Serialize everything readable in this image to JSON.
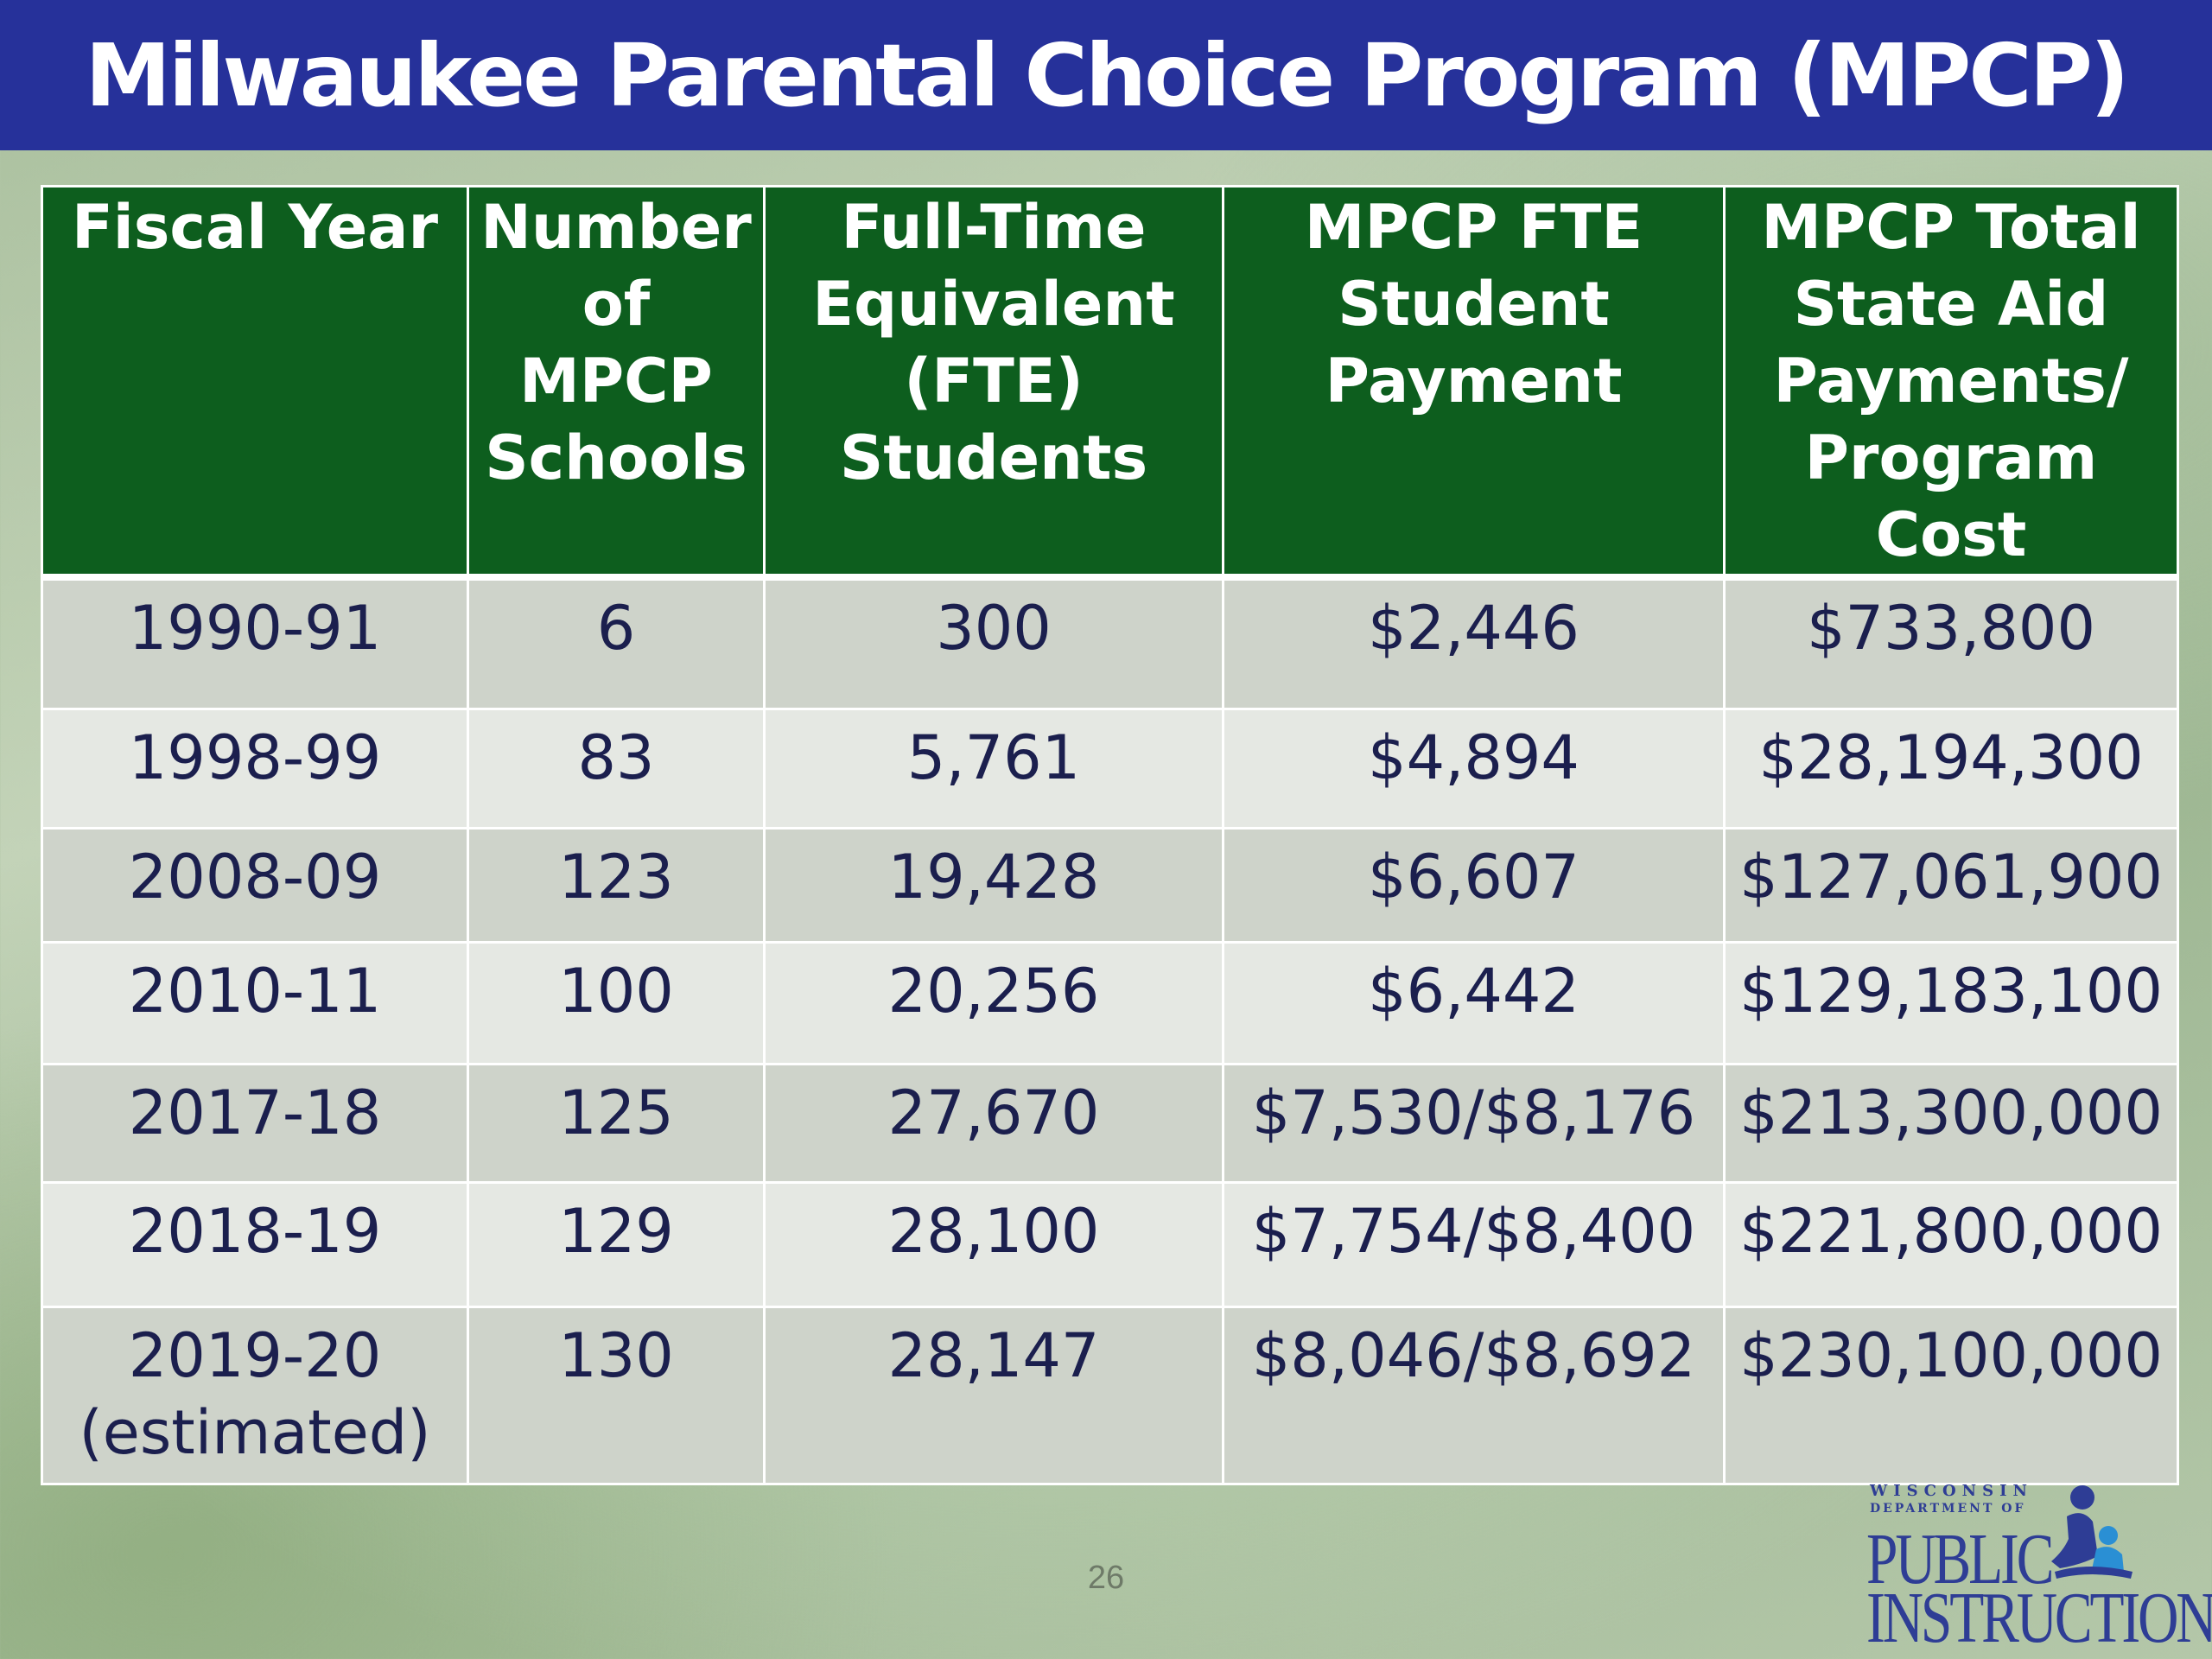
{
  "slide": {
    "title": "Milwaukee Parental Choice Program (MPCP)",
    "page_number": "26"
  },
  "table": {
    "headers": [
      [
        "Fiscal Year"
      ],
      [
        "Number",
        "of",
        "MPCP",
        "Schools"
      ],
      [
        "Full-Time",
        "Equivalent",
        "(FTE)",
        "Students"
      ],
      [
        "MPCP FTE",
        "Student",
        "Payment"
      ],
      [
        "MPCP Total",
        "State Aid",
        "Payments/",
        "Program Cost"
      ]
    ],
    "rows": [
      [
        [
          "1990-91"
        ],
        [
          "6"
        ],
        [
          "300"
        ],
        [
          "$2,446"
        ],
        [
          "$733,800"
        ]
      ],
      [
        [
          "1998-99"
        ],
        [
          "83"
        ],
        [
          "5,761"
        ],
        [
          "$4,894"
        ],
        [
          "$28,194,300"
        ]
      ],
      [
        [
          "2008-09"
        ],
        [
          "123"
        ],
        [
          "19,428"
        ],
        [
          "$6,607"
        ],
        [
          "$127,061,900"
        ]
      ],
      [
        [
          "2010-11"
        ],
        [
          "100"
        ],
        [
          "20,256"
        ],
        [
          "$6,442"
        ],
        [
          "$129,183,100"
        ]
      ],
      [
        [
          "2017-18"
        ],
        [
          "125"
        ],
        [
          "27,670"
        ],
        [
          "$7,530/$8,176"
        ],
        [
          "$213,300,000"
        ]
      ],
      [
        [
          "2018-19"
        ],
        [
          "129"
        ],
        [
          "28,100"
        ],
        [
          "$7,754/$8,400"
        ],
        [
          "$221,800,000"
        ]
      ],
      [
        [
          "2019-20",
          "(estimated)"
        ],
        [
          "130"
        ],
        [
          "28,147"
        ],
        [
          "$8,046/$8,692"
        ],
        [
          "$230,100,000"
        ]
      ]
    ]
  },
  "logo": {
    "line1": "WISCONSIN",
    "line2": "DEPARTMENT OF",
    "line3": "PUBLIC",
    "line4": "INSTRUCTION",
    "icon": "adult-and-child-reading-icon",
    "color": "#2e3d95",
    "accent": "#2a8fd4"
  },
  "colors": {
    "title_bar": "#26319a",
    "header": "#0d5e1e",
    "row_dark": "#ced3ca",
    "row_light": "#e5e8e3",
    "cell_text": "#1b1f4e"
  }
}
